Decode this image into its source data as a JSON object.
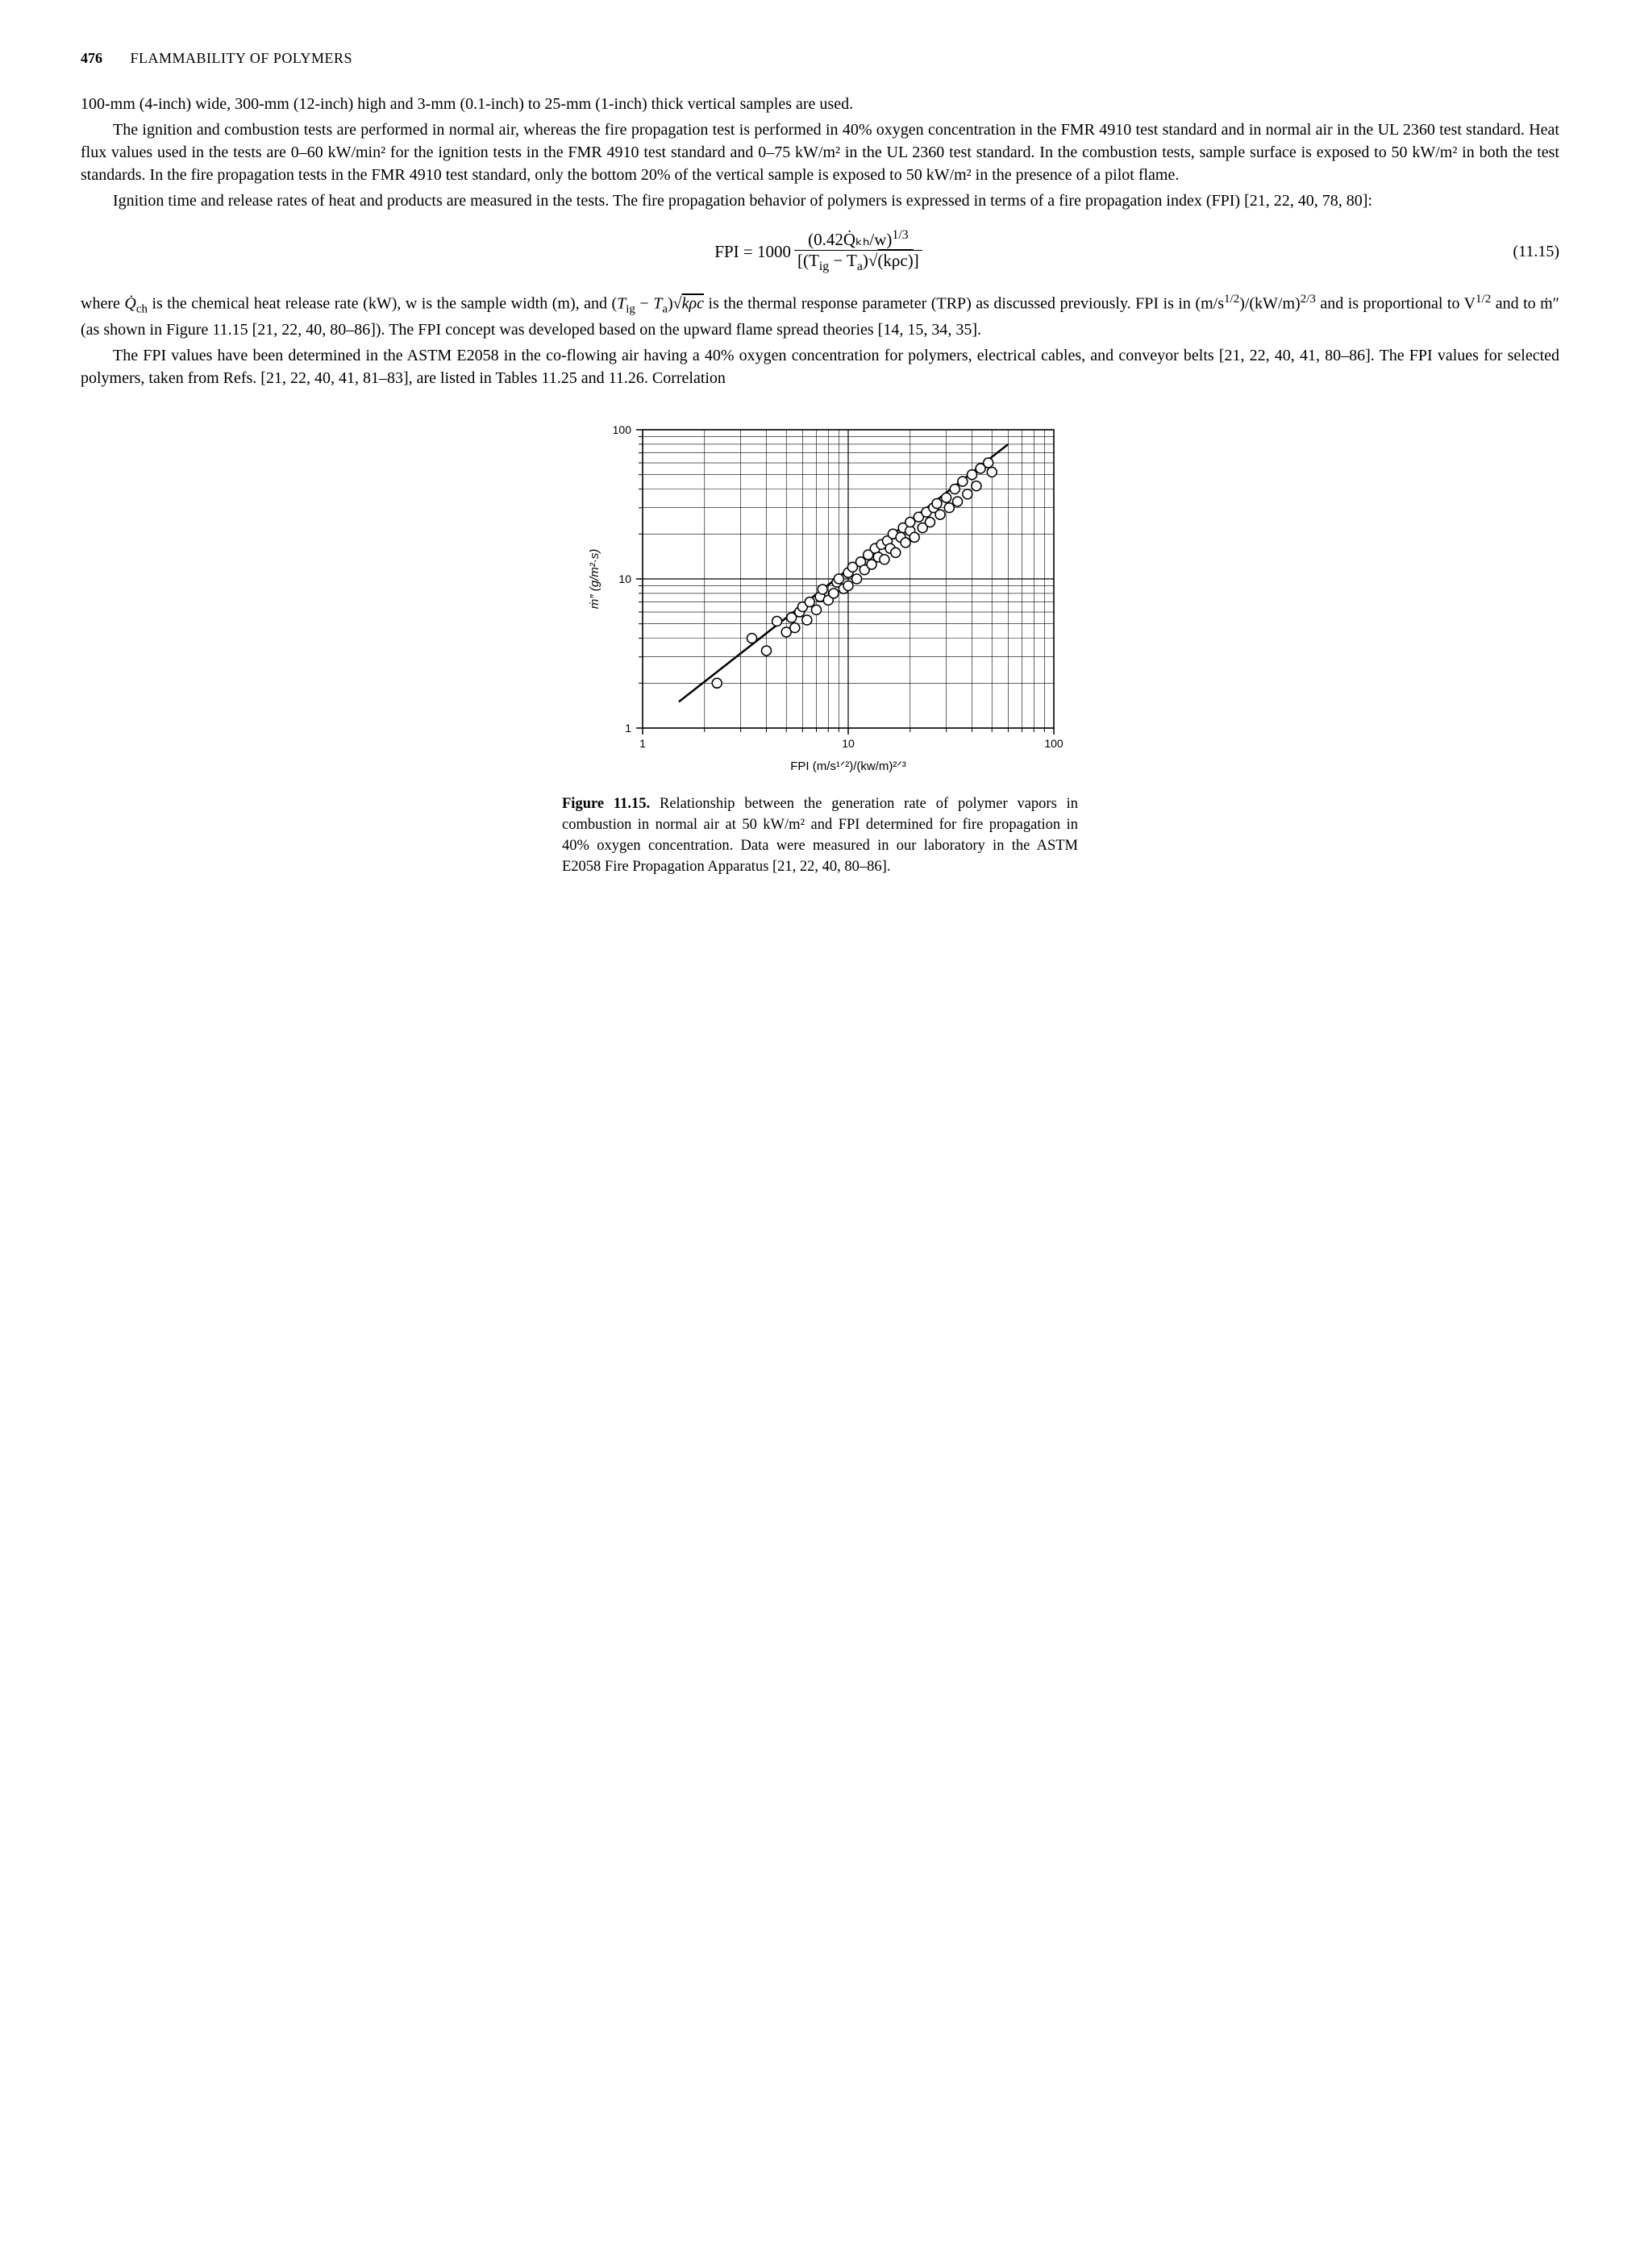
{
  "header": {
    "page_number": "476",
    "chapter": "FLAMMABILITY OF POLYMERS"
  },
  "paragraphs": {
    "p1": "100-mm (4-inch) wide, 300-mm (12-inch) high and 3-mm (0.1-inch) to 25-mm (1-inch) thick vertical samples are used.",
    "p2": "The ignition and combustion tests are performed in normal air, whereas the fire propagation test is performed in 40% oxygen concentration in the FMR 4910 test standard and in normal air in the UL 2360 test standard. Heat flux values used in the tests are 0–60 kW/min² for the ignition tests in the FMR 4910 test standard and 0–75 kW/m² in the UL 2360 test standard. In the combustion tests, sample surface is exposed to 50 kW/m² in both the test standards. In the fire propagation tests in the FMR 4910 test standard, only the bottom 20% of the vertical sample is exposed to 50 kW/m² in the presence of a pilot flame.",
    "p3": "Ignition time and release rates of heat and products are measured in the tests. The fire propagation behavior of polymers is expressed in terms of a fire propagation index (FPI) [21, 22, 40, 78, 80]:",
    "p4a": "where ",
    "p4b": " is the chemical heat release rate (kW), w is the sample width (m), and ",
    "p4c": " is the thermal response parameter (TRP) as discussed previously. FPI is in (m/s",
    "p4d": ")/(kW/m)",
    "p4e": " and is proportional to V",
    "p4f": " and to ṁ″ (as shown in Figure 11.15 [21, 22, 40, 80–86]). The FPI concept was developed based on the upward flame spread theories [14, 15, 34, 35].",
    "p5": "The FPI values have been determined in the ASTM E2058 in the co-flowing air having a 40% oxygen concentration for polymers, electrical cables, and conveyor belts [21, 22, 40, 41, 80–86]. The FPI values for selected polymers, taken from Refs. [21, 22, 40, 41, 81–83], are listed in Tables 11.25 and 11.26. Correlation"
  },
  "equation": {
    "label": "FPI = 1000",
    "numerator": "(0.42Q̇ₖₕ/w)",
    "num_exp": "1/3",
    "denominator_prefix": "[(T",
    "denominator_sub1": "ig",
    "denominator_mid": " − T",
    "denominator_sub2": "a",
    "denominator_sqrt": "(kρc)",
    "denominator_suffix": "]",
    "number": "(11.15)"
  },
  "chart": {
    "type": "scatter",
    "xlabel": "FPI (m/s¹ᐟ²)/(kw/m)²ᐟ³",
    "ylabel": "ṁ″ (g/m²·s)",
    "x_scale": "log",
    "y_scale": "log",
    "xlim": [
      1,
      100
    ],
    "ylim": [
      1,
      100
    ],
    "x_ticks": [
      1,
      10,
      100
    ],
    "y_ticks": [
      1,
      10,
      100
    ],
    "x_minor": [
      2,
      3,
      4,
      5,
      6,
      7,
      8,
      9,
      20,
      30,
      40,
      50,
      60,
      70,
      80,
      90
    ],
    "y_minor": [
      2,
      3,
      4,
      5,
      6,
      7,
      8,
      9,
      20,
      30,
      40,
      50,
      60,
      70,
      80,
      90
    ],
    "background_color": "#ffffff",
    "axis_color": "#000000",
    "grid_color": "#000000",
    "marker_fill": "#ffffff",
    "marker_stroke": "#000000",
    "marker_radius": 6,
    "line_color": "#000000",
    "line_width": 2.5,
    "tick_fontsize": 14,
    "label_fontsize": 15,
    "fit_line": {
      "x1": 1.5,
      "y1": 1.5,
      "x2": 60,
      "y2": 80
    },
    "points": [
      {
        "x": 2.3,
        "y": 2.0
      },
      {
        "x": 3.4,
        "y": 4.0
      },
      {
        "x": 4.0,
        "y": 3.3
      },
      {
        "x": 4.5,
        "y": 5.2
      },
      {
        "x": 5.0,
        "y": 4.4
      },
      {
        "x": 5.3,
        "y": 5.5
      },
      {
        "x": 5.5,
        "y": 4.7
      },
      {
        "x": 5.8,
        "y": 6.0
      },
      {
        "x": 6.0,
        "y": 6.5
      },
      {
        "x": 6.3,
        "y": 5.3
      },
      {
        "x": 6.5,
        "y": 7.0
      },
      {
        "x": 7.0,
        "y": 6.2
      },
      {
        "x": 7.3,
        "y": 7.6
      },
      {
        "x": 7.5,
        "y": 8.5
      },
      {
        "x": 8.0,
        "y": 7.2
      },
      {
        "x": 8.5,
        "y": 8.0
      },
      {
        "x": 8.8,
        "y": 9.5
      },
      {
        "x": 9.0,
        "y": 10.0
      },
      {
        "x": 9.5,
        "y": 8.6
      },
      {
        "x": 10.0,
        "y": 11.0
      },
      {
        "x": 10.0,
        "y": 9.0
      },
      {
        "x": 10.5,
        "y": 12.0
      },
      {
        "x": 11.0,
        "y": 10.0
      },
      {
        "x": 11.5,
        "y": 13.0
      },
      {
        "x": 12.0,
        "y": 11.5
      },
      {
        "x": 12.5,
        "y": 14.5
      },
      {
        "x": 13.0,
        "y": 12.5
      },
      {
        "x": 13.5,
        "y": 16.0
      },
      {
        "x": 14.0,
        "y": 14.0
      },
      {
        "x": 14.5,
        "y": 17.0
      },
      {
        "x": 15.0,
        "y": 13.5
      },
      {
        "x": 15.5,
        "y": 18.0
      },
      {
        "x": 16.0,
        "y": 16.0
      },
      {
        "x": 16.5,
        "y": 20.0
      },
      {
        "x": 17.0,
        "y": 15.0
      },
      {
        "x": 18.0,
        "y": 19.0
      },
      {
        "x": 18.5,
        "y": 22.0
      },
      {
        "x": 19.0,
        "y": 17.5
      },
      {
        "x": 20.0,
        "y": 21.0
      },
      {
        "x": 20.0,
        "y": 24.0
      },
      {
        "x": 21.0,
        "y": 19.0
      },
      {
        "x": 22.0,
        "y": 26.0
      },
      {
        "x": 23.0,
        "y": 22.0
      },
      {
        "x": 24.0,
        "y": 28.0
      },
      {
        "x": 25.0,
        "y": 24.0
      },
      {
        "x": 26.0,
        "y": 30.0
      },
      {
        "x": 27.0,
        "y": 32.0
      },
      {
        "x": 28.0,
        "y": 27.0
      },
      {
        "x": 30.0,
        "y": 35.0
      },
      {
        "x": 31.0,
        "y": 30.0
      },
      {
        "x": 33.0,
        "y": 40.0
      },
      {
        "x": 34.0,
        "y": 33.0
      },
      {
        "x": 36.0,
        "y": 45.0
      },
      {
        "x": 38.0,
        "y": 37.0
      },
      {
        "x": 40.0,
        "y": 50.0
      },
      {
        "x": 42.0,
        "y": 42.0
      },
      {
        "x": 44.0,
        "y": 55.0
      },
      {
        "x": 48.0,
        "y": 60.0
      },
      {
        "x": 50.0,
        "y": 52.0
      }
    ]
  },
  "figure": {
    "label": "Figure 11.15.",
    "caption": " Relationship between the generation rate of polymer vapors in combustion in normal air at 50 kW/m² and FPI determined for fire propagation in 40% oxygen concentration. Data were measured in our laboratory in the ASTM E2058 Fire Propagation Apparatus [21, 22, 40, 80–86]."
  }
}
